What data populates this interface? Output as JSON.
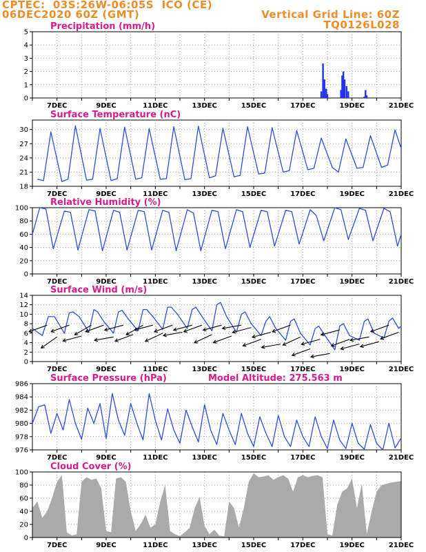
{
  "header": {
    "left_line1": "CPTEC:  03S:26W-06:05S  ICO (CE)",
    "left_line2": "06DEC2020 60Z (GMT)",
    "right_line1": "Vertical Grid Line: 60Z",
    "right_line2": "TQ0126L028",
    "color": "#f08c28"
  },
  "colors": {
    "line": "#2a4de0",
    "bar": "#2233ee",
    "cloud": "#aaaaaa",
    "title": "#d81b8c"
  },
  "x_ticks": [
    "7DEC",
    "9DEC",
    "11DEC",
    "13DEC",
    "15DEC",
    "17DEC",
    "19DEC",
    "21DEC"
  ],
  "model_altitude": "Model Altitude: 275.563 m",
  "chart_data": [
    {
      "type": "bar",
      "title": "Precipitation (mm/h)",
      "ylim": [
        0,
        5
      ],
      "yticks": [
        "0",
        "1",
        "2",
        "3",
        "4",
        "5"
      ],
      "grid": "dotted",
      "x": [
        "17.75DEC",
        "17.82DEC",
        "17.88DEC",
        "17.95DEC",
        "18.0DEC",
        "18.55DEC",
        "18.6DEC",
        "18.65DEC",
        "18.7DEC",
        "18.78DEC",
        "18.85DEC",
        "19.5DEC",
        "19.55DEC",
        "19.6DEC"
      ],
      "values": [
        0.5,
        2.6,
        1.4,
        0.7,
        0.3,
        0.6,
        1.7,
        2.0,
        1.4,
        0.9,
        0.5,
        0.1,
        0.6,
        0.2
      ]
    },
    {
      "type": "line",
      "title": "Surface Temperature (nC)",
      "ylim": [
        18,
        32
      ],
      "yticks": [
        "18",
        "21",
        "24",
        "27",
        "30"
      ],
      "x_days": [
        6.2,
        6.45,
        6.75,
        7.2,
        7.45,
        7.75,
        8.2,
        8.45,
        8.75,
        9.2,
        9.45,
        9.75,
        10.2,
        10.45,
        10.75,
        11.2,
        11.45,
        11.75,
        12.2,
        12.45,
        12.75,
        13.2,
        13.45,
        13.75,
        14.2,
        14.45,
        14.75,
        15.2,
        15.45,
        15.75,
        16.2,
        16.45,
        16.75,
        17.2,
        17.45,
        17.75,
        18.2,
        18.45,
        18.75,
        19.2,
        19.45,
        19.75,
        20.2,
        20.45,
        20.75,
        21.0
      ],
      "values": [
        19.5,
        19.2,
        29.5,
        19.0,
        19.5,
        30.8,
        19.3,
        19.5,
        30.2,
        19.2,
        19.6,
        30.5,
        19.5,
        19.8,
        30.2,
        19.5,
        19.6,
        30.6,
        19.4,
        19.6,
        30.7,
        19.8,
        20.2,
        30.3,
        20.0,
        20.3,
        30.6,
        20.6,
        20.8,
        30.4,
        21.0,
        21.3,
        29.8,
        21.5,
        21.8,
        28.2,
        22.0,
        21.0,
        28.0,
        21.8,
        22.0,
        28.7,
        22.0,
        22.5,
        29.9,
        26.0
      ]
    },
    {
      "type": "line",
      "title": "Relative Humidity (%)",
      "ylim": [
        0,
        100
      ],
      "yticks": [
        "0",
        "20",
        "40",
        "60",
        "80",
        "100"
      ],
      "x_days": [
        6.0,
        6.3,
        6.55,
        6.85,
        7.3,
        7.55,
        7.85,
        8.3,
        8.55,
        8.85,
        9.3,
        9.55,
        9.85,
        10.3,
        10.55,
        10.85,
        11.3,
        11.55,
        11.85,
        12.3,
        12.55,
        12.85,
        13.3,
        13.55,
        13.85,
        14.3,
        14.55,
        14.85,
        15.3,
        15.55,
        15.85,
        16.3,
        16.55,
        16.85,
        17.3,
        17.55,
        17.85,
        18.3,
        18.55,
        18.85,
        19.3,
        19.55,
        19.85,
        20.3,
        20.55,
        20.85,
        21.0
      ],
      "values": [
        60,
        100,
        98,
        38,
        95,
        93,
        36,
        97,
        95,
        35,
        96,
        93,
        36,
        96,
        94,
        36,
        96,
        93,
        35,
        97,
        92,
        35,
        96,
        94,
        38,
        97,
        94,
        40,
        96,
        94,
        42,
        96,
        94,
        45,
        97,
        88,
        50,
        100,
        97,
        52,
        99,
        96,
        50,
        99,
        94,
        42,
        60
      ]
    },
    {
      "type": "line",
      "title": "Surface Wind (m/s)",
      "ylim": [
        0,
        14
      ],
      "yticks": [
        "0",
        "2",
        "4",
        "6",
        "8",
        "10",
        "12",
        "14"
      ],
      "x_days": [
        6.0,
        6.4,
        6.65,
        6.9,
        7.3,
        7.5,
        7.65,
        7.9,
        8.3,
        8.5,
        8.65,
        8.9,
        9.3,
        9.5,
        9.65,
        9.9,
        10.3,
        10.5,
        10.65,
        10.9,
        11.3,
        11.5,
        11.65,
        11.9,
        12.3,
        12.5,
        12.65,
        12.9,
        13.3,
        13.5,
        13.65,
        13.9,
        14.3,
        14.5,
        14.65,
        14.9,
        15.3,
        15.5,
        15.65,
        15.9,
        16.3,
        16.5,
        16.65,
        16.9,
        17.3,
        17.5,
        17.65,
        17.9,
        18.3,
        18.5,
        18.65,
        18.9,
        19.3,
        19.5,
        19.65,
        19.9,
        20.3,
        20.5,
        20.65,
        20.9,
        21.0
      ],
      "values": [
        7.0,
        5.5,
        9.5,
        9.5,
        6.0,
        10.3,
        10.5,
        9.5,
        6.2,
        11.0,
        10.5,
        8.5,
        6.0,
        10.5,
        10.8,
        9.0,
        6.5,
        11.0,
        11.0,
        9.5,
        6.8,
        11.5,
        11.5,
        10.0,
        7.0,
        11.0,
        11.5,
        9.5,
        6.5,
        12.0,
        12.5,
        9.5,
        6.2,
        10.0,
        10.5,
        8.0,
        5.5,
        8.5,
        9.5,
        7.0,
        4.5,
        8.5,
        9.0,
        6.0,
        3.5,
        7.0,
        7.5,
        5.5,
        2.5,
        7.5,
        8.0,
        5.5,
        4.5,
        8.5,
        9.0,
        6.0,
        5.0,
        8.5,
        9.2,
        7.0,
        7.5
      ],
      "arrows_days": [
        6.6,
        7.0,
        7.5,
        8.0,
        8.4,
        8.9,
        9.3,
        9.7,
        10.1,
        10.5,
        10.9,
        11.3,
        11.7,
        12.1,
        12.5,
        12.9,
        13.3,
        13.7,
        14.1,
        14.5,
        14.9,
        15.3,
        15.7,
        16.1,
        16.5,
        16.9,
        17.3,
        17.7,
        18.1,
        18.5,
        18.9,
        19.3,
        19.7,
        20.1,
        20.5,
        20.9
      ],
      "arrows_dir_deg": [
        200,
        215,
        200,
        195,
        210,
        200,
        190,
        195,
        200,
        210,
        195,
        205,
        200,
        190,
        195,
        200,
        205,
        195,
        200,
        190,
        195,
        200,
        195,
        190,
        200,
        205,
        200,
        195,
        190,
        195,
        200,
        195,
        190,
        195,
        200,
        200
      ]
    },
    {
      "type": "line",
      "title": "Surface Pressure (hPa)",
      "ylim": [
        976,
        986
      ],
      "yticks": [
        "976",
        "978",
        "980",
        "982",
        "984",
        "986"
      ],
      "x_days": [
        6.0,
        6.25,
        6.5,
        6.75,
        7.0,
        7.25,
        7.5,
        7.75,
        8.0,
        8.25,
        8.5,
        8.75,
        9.0,
        9.25,
        9.5,
        9.75,
        10.0,
        10.25,
        10.5,
        10.75,
        11.0,
        11.25,
        11.5,
        11.75,
        12.0,
        12.25,
        12.5,
        12.75,
        13.0,
        13.25,
        13.5,
        13.75,
        14.0,
        14.25,
        14.5,
        14.75,
        15.0,
        15.25,
        15.5,
        15.75,
        16.0,
        16.25,
        16.5,
        16.75,
        17.0,
        17.25,
        17.5,
        17.75,
        18.0,
        18.25,
        18.5,
        18.75,
        19.0,
        19.25,
        19.5,
        19.75,
        20.0,
        20.25,
        20.5,
        20.75,
        21.0
      ],
      "values": [
        980.0,
        982.5,
        982.8,
        978.5,
        981.5,
        979.0,
        983.6,
        980.0,
        977.6,
        982.3,
        980.0,
        983.0,
        977.7,
        984.5,
        980.5,
        978.2,
        983.0,
        980.0,
        977.5,
        984.5,
        980.5,
        977.5,
        982.2,
        979.0,
        977.0,
        982.0,
        979.5,
        977.2,
        982.8,
        979.0,
        976.8,
        981.5,
        979.0,
        976.8,
        981.5,
        978.5,
        976.5,
        981.0,
        978.5,
        976.5,
        981.2,
        978.0,
        976.5,
        980.5,
        978.0,
        976.5,
        981.0,
        978.0,
        976.2,
        980.5,
        977.5,
        976.2,
        980.0,
        977.0,
        976.1,
        979.8,
        977.0,
        976.0,
        980.0,
        976.3,
        977.8
      ]
    },
    {
      "type": "area",
      "title": "Cloud Cover (%)",
      "ylim": [
        0,
        100
      ],
      "yticks": [
        "0",
        "20",
        "40",
        "60",
        "80",
        "100"
      ],
      "x_days": [
        6.0,
        6.2,
        6.4,
        6.6,
        6.8,
        7.0,
        7.2,
        7.4,
        7.6,
        7.8,
        8.0,
        8.2,
        8.4,
        8.6,
        8.8,
        9.0,
        9.2,
        9.4,
        9.6,
        9.8,
        10.0,
        10.2,
        10.4,
        10.6,
        10.8,
        11.0,
        11.2,
        11.4,
        11.6,
        11.8,
        12.0,
        12.2,
        12.4,
        12.6,
        12.8,
        13.0,
        13.2,
        13.4,
        13.6,
        13.8,
        14.0,
        14.2,
        14.4,
        14.6,
        14.8,
        15.0,
        15.2,
        15.4,
        15.6,
        15.8,
        16.0,
        16.2,
        16.4,
        16.6,
        16.8,
        17.0,
        17.2,
        17.4,
        17.6,
        17.8,
        18.0,
        18.2,
        18.4,
        18.6,
        18.8,
        19.0,
        19.2,
        19.4,
        19.6,
        19.8,
        20.0,
        20.2,
        20.4,
        20.6,
        20.8,
        21.0
      ],
      "values": [
        45,
        55,
        30,
        40,
        60,
        85,
        95,
        8,
        3,
        5,
        85,
        92,
        88,
        90,
        75,
        10,
        8,
        90,
        92,
        85,
        40,
        10,
        20,
        35,
        15,
        20,
        55,
        80,
        10,
        5,
        2,
        8,
        15,
        45,
        62,
        18,
        5,
        12,
        3,
        2,
        55,
        45,
        15,
        45,
        85,
        98,
        92,
        93,
        95,
        88,
        92,
        95,
        90,
        70,
        92,
        95,
        92,
        94,
        95,
        92,
        5,
        3,
        50,
        70,
        75,
        90,
        45,
        82,
        5,
        40,
        70,
        80,
        82,
        84,
        85,
        86
      ]
    }
  ]
}
